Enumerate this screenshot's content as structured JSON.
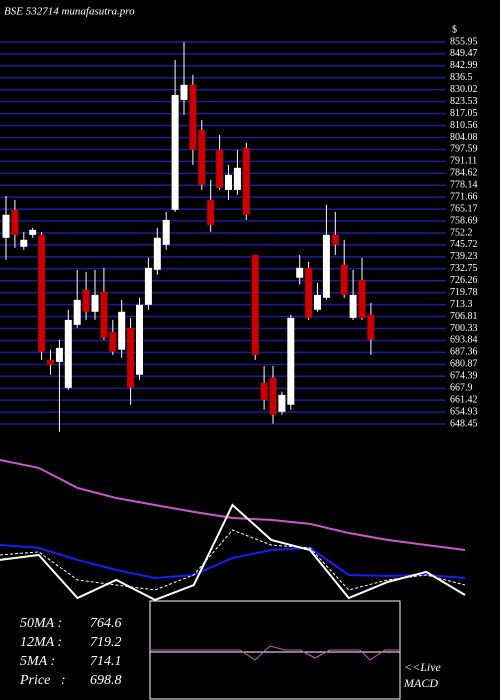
{
  "header": {
    "title": "BSE 532714 munafasutra.pro",
    "currency": "$"
  },
  "stats": [
    {
      "label": "50MA :",
      "value": 764.6
    },
    {
      "label": "12MA :",
      "value": 719.2
    },
    {
      "label": "5MA :",
      "value": 714.1
    },
    {
      "label": "Price   :",
      "value": 698.8
    }
  ],
  "macd": {
    "live_label": "<<Live",
    "label": "MACD"
  },
  "chart_data": [
    {
      "type": "candlestick",
      "up_color": "#ffffff",
      "down_color": "#cc0000",
      "grid_color": "#1c1c9c",
      "ylim": [
        648.45,
        855.95
      ],
      "yticks": [
        855.95,
        849.47,
        842.99,
        836.5,
        830.02,
        823.53,
        817.05,
        810.56,
        804.08,
        797.59,
        791.11,
        784.62,
        778.14,
        771.66,
        765.17,
        758.69,
        752.2,
        745.72,
        739.23,
        732.75,
        726.26,
        719.78,
        713.3,
        706.81,
        700.33,
        693.84,
        687.36,
        680.87,
        674.39,
        667.9,
        661.42,
        654.93,
        648.45
      ],
      "open": [
        749.6,
        764.8,
        744.7,
        751.2,
        751.2,
        683.3,
        682.2,
        668.1,
        702.3,
        721.3,
        709.4,
        720.3,
        698.5,
        688.8,
        700.7,
        675.2,
        713.2,
        732.2,
        745.8,
        764.8,
        824.5,
        832.7,
        808.2,
        770.2,
        797.4,
        775.6,
        775.6,
        798.4,
        740.3,
        670.8,
        673.6,
        655.1,
        658.9,
        727.9,
        733.3,
        710.5,
        717,
        751.2,
        734.9,
        706.1,
        726.8,
        707.8
      ],
      "high": [
        772.4,
        770.2,
        752.8,
        755,
        752.8,
        688.8,
        694.2,
        710.5,
        732.2,
        731.1,
        732.2,
        733.3,
        705,
        715.9,
        706.1,
        717,
        738.7,
        755,
        763.7,
        846.2,
        856,
        838.1,
        813.6,
        781.1,
        805.5,
        789.2,
        797.4,
        801.2,
        740.3,
        680,
        680,
        666,
        707.8,
        740.3,
        736.5,
        725.1,
        767.5,
        763.7,
        748.5,
        732.2,
        738.7,
        714.3
      ],
      "low": [
        737.6,
        744.1,
        743.1,
        749.6,
        683.3,
        675.2,
        644.2,
        667,
        700.7,
        705,
        705,
        694.2,
        686,
        684.4,
        658.9,
        672.5,
        710.5,
        729.5,
        743.1,
        763.7,
        816.4,
        789.2,
        775.6,
        752.8,
        775.6,
        770.2,
        772.9,
        759.3,
        683.3,
        656.2,
        648.6,
        653.5,
        656.2,
        724.1,
        705,
        709.4,
        715.9,
        740.3,
        717,
        705,
        705,
        686
      ],
      "close": [
        762.1,
        751.2,
        748.5,
        753.9,
        687.7,
        680.6,
        689.8,
        705,
        715.9,
        709.4,
        718.6,
        695.3,
        687.7,
        709.4,
        668.1,
        713.2,
        733.3,
        749.6,
        759.3,
        827.2,
        832.7,
        797.4,
        778.4,
        756.6,
        776.7,
        783.8,
        787.6,
        762.1,
        686,
        661.6,
        653.5,
        664.3,
        706.1,
        733.3,
        706.1,
        718.6,
        751.2,
        745.8,
        718.6,
        718.6,
        706.1,
        694.2
      ]
    },
    {
      "type": "line",
      "ylim": [
        0,
        100
      ],
      "series": [
        {
          "color": "#cc55cc",
          "values": [
            93.8,
            88.8,
            76.3,
            70,
            65.6,
            61.3,
            57.5,
            56.3,
            53.8,
            48.1,
            43.8,
            40.6,
            37.5
          ]
        },
        {
          "color": "#1a1aff",
          "values": [
            40.6,
            38.8,
            31.3,
            25,
            20,
            21.9,
            32.5,
            37.5,
            38.8,
            21.9,
            21.3,
            21.9,
            20
          ]
        },
        {
          "color": "#ffffff",
          "values": [
            31.3,
            34.4,
            7.5,
            18.8,
            6.3,
            15.6,
            65.6,
            43.8,
            37.5,
            7.5,
            17.5,
            23.8,
            9.4
          ]
        },
        {
          "color": "#ffffff",
          "dashed": true,
          "values": [
            34.4,
            36.3,
            18.8,
            15.6,
            12.5,
            21.9,
            50,
            40.6,
            38.8,
            12.5,
            18.8,
            21.9,
            15.6
          ]
        }
      ]
    }
  ]
}
